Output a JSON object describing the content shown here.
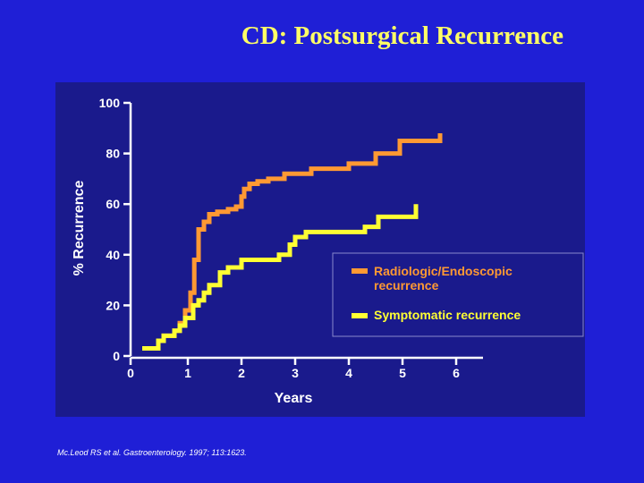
{
  "slide": {
    "title": "CD: Postsurgical Recurrence",
    "citation": "Mc.Leod RS et al. Gastroenterology. 1997; 113:1623."
  },
  "colors": {
    "background": "#1f1fd6",
    "panel": "#1a1a8c",
    "title": "#ffff66",
    "radiologic": "#ff9933",
    "symptomatic": "#ffff33"
  },
  "chart_data": {
    "type": "line",
    "step": true,
    "xlabel": "Years",
    "ylabel": "% Recurrence",
    "xlim": [
      0,
      6.5
    ],
    "ylim": [
      0,
      100
    ],
    "xticks": [
      "0",
      "1",
      "2",
      "3",
      "4",
      "5",
      "6"
    ],
    "yticks": [
      "0",
      "20",
      "40",
      "60",
      "80",
      "100"
    ],
    "grid": false,
    "legend_position": "right",
    "series": [
      {
        "name": "Radiologic/Endoscopic recurrence",
        "color": "#ff9933",
        "x": [
          0.15,
          0.45,
          0.55,
          0.75,
          0.85,
          0.95,
          1.05,
          1.12,
          1.2,
          1.3,
          1.4,
          1.55,
          1.75,
          1.9,
          2.0,
          2.05,
          2.15,
          2.3,
          2.5,
          2.8,
          3.3,
          4.0,
          4.5,
          4.95,
          5.7
        ],
        "y": [
          3,
          6,
          8,
          10,
          13,
          18,
          25,
          38,
          50,
          53,
          56,
          57,
          58,
          59,
          63,
          66,
          68,
          69,
          70,
          72,
          74,
          76,
          80,
          85,
          88
        ]
      },
      {
        "name": "Symptomatic recurrence",
        "color": "#ffff33",
        "x": [
          0.15,
          0.45,
          0.55,
          0.75,
          0.85,
          0.95,
          1.1,
          1.2,
          1.3,
          1.4,
          1.6,
          1.75,
          2.0,
          2.7,
          2.9,
          3.0,
          3.2,
          4.3,
          4.55,
          5.25
        ],
        "y": [
          3,
          6,
          8,
          10,
          12,
          15,
          20,
          22,
          25,
          28,
          33,
          35,
          38,
          40,
          44,
          47,
          49,
          51,
          55,
          60
        ]
      }
    ]
  }
}
